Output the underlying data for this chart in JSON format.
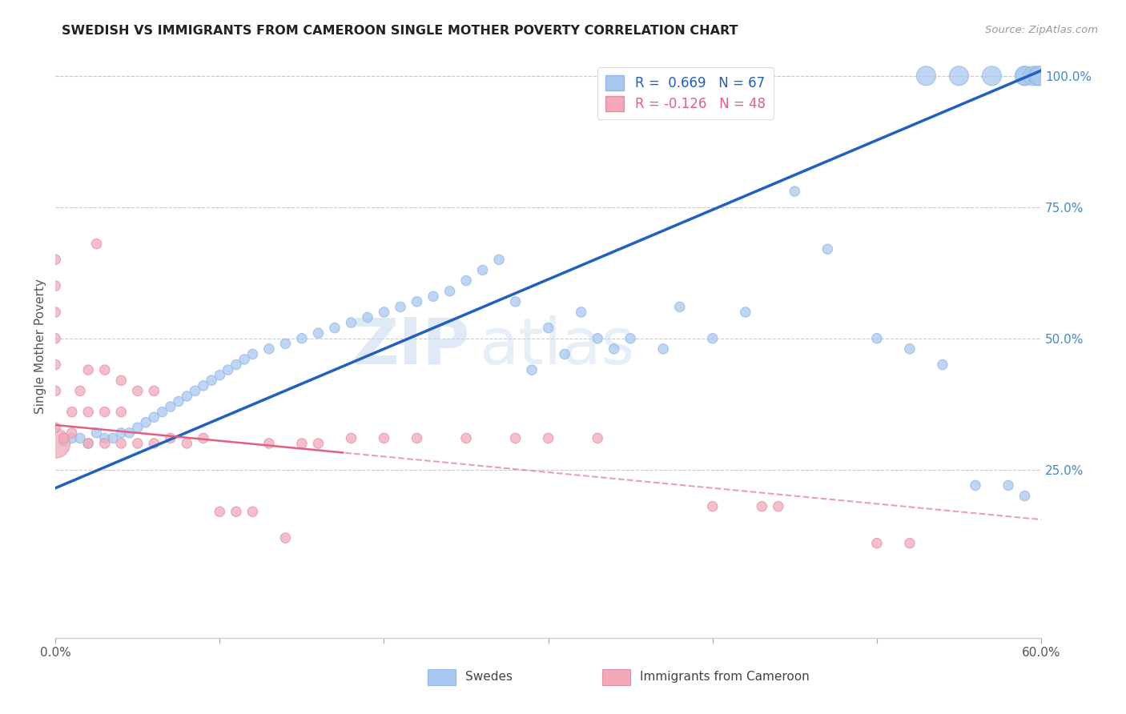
{
  "title": "SWEDISH VS IMMIGRANTS FROM CAMEROON SINGLE MOTHER POVERTY CORRELATION CHART",
  "source": "Source: ZipAtlas.com",
  "ylabel": "Single Mother Poverty",
  "watermark_zip": "ZIP",
  "watermark_atlas": "atlas",
  "x_min": 0.0,
  "x_max": 0.6,
  "y_min": -0.07,
  "y_max": 1.04,
  "x_ticks": [
    0.0,
    0.1,
    0.2,
    0.3,
    0.4,
    0.5,
    0.6
  ],
  "x_tick_labels": [
    "0.0%",
    "",
    "",
    "",
    "",
    "",
    "60.0%"
  ],
  "y_ticks_right": [
    0.25,
    0.5,
    0.75,
    1.0
  ],
  "y_tick_labels_right": [
    "25.0%",
    "50.0%",
    "75.0%",
    "100.0%"
  ],
  "swede_color": "#a8c8f0",
  "cameroon_color": "#f4a8b8",
  "swede_line_color": "#2060c0",
  "cameroon_line_color": "#e06080",
  "legend_R_swede": "R =  0.669",
  "legend_N_swede": "N = 67",
  "legend_R_cameroon": "R = -0.126",
  "legend_N_cameroon": "N = 48",
  "swede_line_x0": 0.0,
  "swede_line_y0": 0.215,
  "swede_line_x1": 0.6,
  "swede_line_y1": 1.01,
  "cam_line_x0": 0.0,
  "cam_line_y0": 0.335,
  "cam_line_x1": 0.6,
  "cam_line_y1": 0.155,
  "swedes_x": [
    0.005,
    0.01,
    0.015,
    0.02,
    0.025,
    0.03,
    0.035,
    0.04,
    0.045,
    0.05,
    0.055,
    0.06,
    0.065,
    0.07,
    0.075,
    0.08,
    0.085,
    0.09,
    0.095,
    0.1,
    0.105,
    0.11,
    0.115,
    0.12,
    0.13,
    0.14,
    0.15,
    0.16,
    0.17,
    0.18,
    0.19,
    0.2,
    0.21,
    0.22,
    0.23,
    0.24,
    0.25,
    0.26,
    0.27,
    0.28,
    0.29,
    0.3,
    0.31,
    0.32,
    0.33,
    0.34,
    0.35,
    0.37,
    0.38,
    0.4,
    0.42,
    0.45,
    0.47,
    0.5,
    0.52,
    0.54,
    0.56,
    0.58,
    0.59,
    0.53,
    0.55,
    0.57,
    0.59,
    0.59,
    0.595,
    0.598,
    0.599
  ],
  "swedes_y": [
    0.305,
    0.31,
    0.31,
    0.3,
    0.32,
    0.31,
    0.31,
    0.32,
    0.32,
    0.33,
    0.34,
    0.35,
    0.36,
    0.37,
    0.38,
    0.39,
    0.4,
    0.41,
    0.42,
    0.43,
    0.44,
    0.45,
    0.46,
    0.47,
    0.48,
    0.49,
    0.5,
    0.51,
    0.52,
    0.53,
    0.54,
    0.55,
    0.56,
    0.57,
    0.58,
    0.59,
    0.61,
    0.63,
    0.65,
    0.57,
    0.44,
    0.52,
    0.47,
    0.55,
    0.5,
    0.48,
    0.5,
    0.48,
    0.56,
    0.5,
    0.55,
    0.78,
    0.67,
    0.5,
    0.48,
    0.45,
    0.22,
    0.22,
    0.2,
    1.0,
    1.0,
    1.0,
    1.0,
    1.0,
    1.0,
    1.0,
    1.0
  ],
  "swedes_sizes": [
    80,
    80,
    80,
    80,
    80,
    80,
    80,
    80,
    80,
    80,
    80,
    80,
    80,
    80,
    80,
    80,
    80,
    80,
    80,
    80,
    80,
    80,
    80,
    80,
    80,
    80,
    80,
    80,
    80,
    80,
    80,
    80,
    80,
    80,
    80,
    80,
    80,
    80,
    80,
    80,
    80,
    80,
    80,
    80,
    80,
    80,
    80,
    80,
    80,
    80,
    80,
    80,
    80,
    80,
    80,
    80,
    80,
    80,
    80,
    300,
    300,
    300,
    300,
    300,
    300,
    300,
    300
  ],
  "cameroon_x": [
    0.0,
    0.0,
    0.005,
    0.01,
    0.01,
    0.015,
    0.02,
    0.02,
    0.02,
    0.025,
    0.03,
    0.03,
    0.03,
    0.04,
    0.04,
    0.04,
    0.05,
    0.05,
    0.06,
    0.06,
    0.07,
    0.08,
    0.09,
    0.1,
    0.11,
    0.12,
    0.13,
    0.14,
    0.15,
    0.16,
    0.18,
    0.2,
    0.22,
    0.25,
    0.28,
    0.3,
    0.33,
    0.4,
    0.43,
    0.44,
    0.5,
    0.52,
    0.0,
    0.0,
    0.0,
    0.0,
    0.0,
    0.0
  ],
  "cameroon_y": [
    0.3,
    0.33,
    0.31,
    0.32,
    0.36,
    0.4,
    0.3,
    0.36,
    0.44,
    0.68,
    0.3,
    0.36,
    0.44,
    0.3,
    0.36,
    0.42,
    0.3,
    0.4,
    0.3,
    0.4,
    0.31,
    0.3,
    0.31,
    0.17,
    0.17,
    0.17,
    0.3,
    0.12,
    0.3,
    0.3,
    0.31,
    0.31,
    0.31,
    0.31,
    0.31,
    0.31,
    0.31,
    0.18,
    0.18,
    0.18,
    0.11,
    0.11,
    0.4,
    0.45,
    0.5,
    0.55,
    0.6,
    0.65
  ],
  "cameroon_sizes": [
    700,
    80,
    80,
    80,
    80,
    80,
    80,
    80,
    80,
    80,
    80,
    80,
    80,
    80,
    80,
    80,
    80,
    80,
    80,
    80,
    80,
    80,
    80,
    80,
    80,
    80,
    80,
    80,
    80,
    80,
    80,
    80,
    80,
    80,
    80,
    80,
    80,
    80,
    80,
    80,
    80,
    80,
    80,
    80,
    80,
    80,
    80,
    80
  ]
}
